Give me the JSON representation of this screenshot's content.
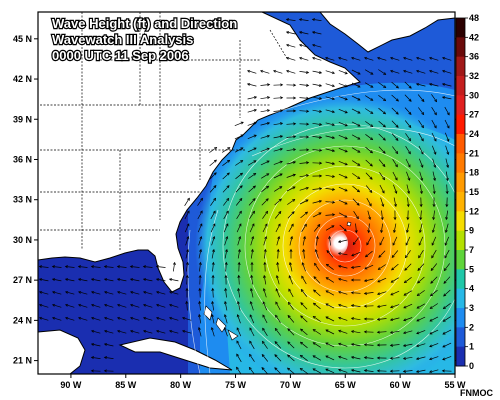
{
  "map": {
    "title_lines": [
      "Wave Height (ft) and Direction",
      "Wavewatch III Analysis",
      "0000 UTC 11 Sep 2006"
    ],
    "credit": "FNMOC",
    "lat_labels": [
      "45 N",
      "42 N",
      "39 N",
      "36 N",
      "33 N",
      "30 N",
      "27 N",
      "24 N",
      "21 N"
    ],
    "lon_labels": [
      "90 W",
      "85 W",
      "80 W",
      "75 W",
      "70 W",
      "65 W",
      "60 W",
      "55 W"
    ],
    "storm_center_label": ""
  },
  "chart_data": {
    "type": "heatmap",
    "title": "Wave Height (ft) and Direction",
    "subtitle": "Wavewatch III Analysis 0000 UTC 11 Sep 2006",
    "xlim": [
      -93,
      -55
    ],
    "ylim": [
      20,
      47
    ],
    "legend_position": "right",
    "colorbar_labels": [
      "48",
      "42",
      "36",
      "32",
      "30",
      "27",
      "24",
      "21",
      "18",
      "15",
      "12",
      "9",
      "7",
      "5",
      "4",
      "3",
      "2",
      "1",
      "0"
    ],
    "colorbar_colors": [
      "#2b0000",
      "#6a0a0a",
      "#a01818",
      "#c41e1e",
      "#e02020",
      "#ff1a00",
      "#ff5a00",
      "#ff7a00",
      "#ff9a00",
      "#ffb200",
      "#f5dc00",
      "#b4e000",
      "#5fd43a",
      "#1fc7a8",
      "#27b8e6",
      "#1e8cf0",
      "#1e5ad8",
      "#1a2eb0",
      "#10107a"
    ],
    "max_wave_height_ft": 30,
    "max_wave_location": {
      "lon": -65.5,
      "lat": 30.3
    }
  }
}
